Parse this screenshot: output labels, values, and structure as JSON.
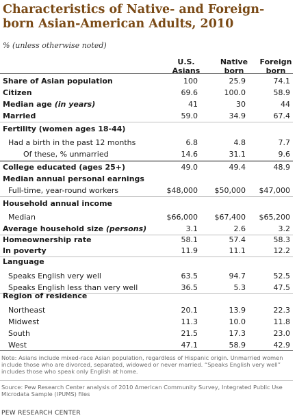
{
  "title": "Characteristics of Native- and Foreign-born Asian-American Adults, 2010",
  "subtitle": "% (unless otherwise noted)",
  "columns": [
    "U.S.\nAsians",
    "Native\nborn",
    "Foreign\nborn"
  ],
  "columns_lines": [
    [
      "U.S.",
      "Asians"
    ],
    [
      "Native",
      "born"
    ],
    [
      "Foreign",
      "born"
    ]
  ],
  "rows": [
    {
      "label": "Share of Asian population",
      "values": [
        "100",
        "25.9",
        "74.1"
      ]
    },
    {
      "label": "Citizen",
      "values": [
        "69.6",
        "100.0",
        "58.9"
      ]
    },
    {
      "label": "Median age",
      "label_suffix": "(in years)",
      "values": [
        "41",
        "30",
        "44"
      ]
    },
    {
      "label": "Married",
      "values": [
        "59.0",
        "34.9",
        "67.4"
      ]
    },
    {
      "label": "Fertility (women ages 18-44)",
      "values": [
        "",
        "",
        ""
      ]
    },
    {
      "label": "Had a birth in the past 12 months",
      "values": [
        "6.8",
        "4.8",
        "7.7"
      ]
    },
    {
      "label": "Of these, % unmarried",
      "values": [
        "14.6",
        "31.1",
        "9.6"
      ]
    },
    {
      "label": "College educated (ages 25+)",
      "values": [
        "49.0",
        "49.4",
        "48.9"
      ]
    },
    {
      "label": "Median annual personal earnings",
      "values": [
        "",
        "",
        ""
      ]
    },
    {
      "label": "Full-time, year-round workers",
      "values": [
        "$48,000",
        "$50,000",
        "$47,000"
      ]
    },
    {
      "label": "Household annual income",
      "values": [
        "",
        "",
        ""
      ]
    },
    {
      "label": "Median",
      "values": [
        "$66,000",
        "$67,400",
        "$65,200"
      ]
    },
    {
      "label": "Average household size",
      "label_suffix": "(persons)",
      "values": [
        "3.1",
        "2.6",
        "3.2"
      ]
    },
    {
      "label": "Homeownership rate",
      "values": [
        "58.1",
        "57.4",
        "58.3"
      ]
    },
    {
      "label": "In poverty",
      "values": [
        "11.9",
        "11.1",
        "12.2"
      ]
    },
    {
      "label": "Language",
      "values": [
        "",
        "",
        ""
      ]
    },
    {
      "label": "Speaks English very well",
      "values": [
        "63.5",
        "94.7",
        "52.5"
      ]
    },
    {
      "label": "Speaks English less than very well",
      "values": [
        "36.5",
        "5.3",
        "47.5"
      ]
    },
    {
      "label": "Region of residence",
      "values": [
        "",
        "",
        ""
      ]
    },
    {
      "label": "Northeast",
      "values": [
        "20.1",
        "13.9",
        "22.3"
      ]
    },
    {
      "label": "Midwest",
      "values": [
        "11.3",
        "10.0",
        "11.8"
      ]
    },
    {
      "label": "South",
      "values": [
        "21.5",
        "17.3",
        "23.0"
      ]
    },
    {
      "label": "West",
      "values": [
        "47.1",
        "58.9",
        "42.9"
      ]
    }
  ],
  "note": "Note: Asians include mixed-race Asian population, regardless of Hispanic origin. Unmarried women include those who are divorced, separated, widowed or never married. “Speaks English very well” includes those who speak only English at home.",
  "source": "Source: Pew Research Center analysis of 2010 American Community Survey, Integrated Public Use Microdata Sample (IPUMS) files",
  "brand": "PEW RESEARCH CENTER",
  "colors": {
    "title": "#7a4a16",
    "rule": "#777777"
  }
}
